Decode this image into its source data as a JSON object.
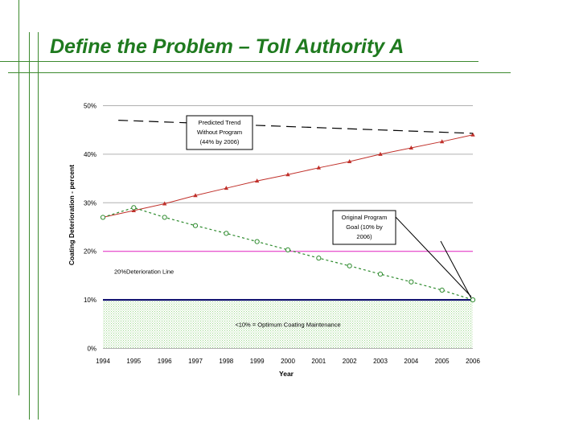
{
  "slide": {
    "title": "Define the Problem – Toll Authority A"
  },
  "colors": {
    "frame": "#3c8a2e",
    "title": "#1f7a1f",
    "trend_red": "#c0302a",
    "goal_green": "#2e8b2e",
    "line_20": "#e020c0",
    "line_10": "#000066",
    "optimum_fill": "#d8f0d0"
  },
  "chart_data": {
    "type": "line",
    "title": "",
    "xlabel": "Year",
    "ylabel": "Coating Deterioration - percent",
    "categories": [
      "1994",
      "1995",
      "1996",
      "1997",
      "1998",
      "1999",
      "2000",
      "2001",
      "2002",
      "2003",
      "2004",
      "2005",
      "2006"
    ],
    "ylim": [
      0,
      50
    ],
    "yticks": [
      0,
      10,
      20,
      30,
      40,
      50
    ],
    "ytick_labels": [
      "0%",
      "10%",
      "20%",
      "30%",
      "40%",
      "50%"
    ],
    "grid": "horizontal",
    "series": [
      {
        "name": "Predicted Trend Without Program",
        "style": "solid-red-triangles",
        "values": [
          27,
          28.4,
          29.8,
          31.5,
          33,
          34.5,
          35.8,
          37.2,
          38.5,
          40,
          41.3,
          42.6,
          44
        ]
      },
      {
        "name": "Original Program Goal",
        "style": "dashed-green-circles",
        "values": [
          27,
          29,
          27,
          25.3,
          23.7,
          22,
          20.3,
          18.6,
          17,
          15.3,
          13.7,
          12,
          10
        ]
      },
      {
        "name": "Predicted Trend (dashed)",
        "style": "dashed-black",
        "points": [
          [
            1994.5,
            47
          ],
          [
            2006,
            44.3
          ]
        ]
      }
    ],
    "reference_lines": [
      {
        "name": "20% Deterioration Line",
        "value": 20,
        "label": "20%Deterioration Line"
      },
      {
        "name": "10% Optimum Line",
        "value": 10,
        "label": ""
      }
    ],
    "shaded_region": {
      "range": [
        0,
        10
      ],
      "label": "<10% = Optimum Coating Maintenance"
    },
    "annotations": [
      {
        "lines": [
          "Predicted Trend",
          "Without Program",
          "(44% by 2006)"
        ]
      },
      {
        "lines": [
          "Original Program",
          "Goal (10% by",
          "2006)"
        ]
      }
    ]
  }
}
